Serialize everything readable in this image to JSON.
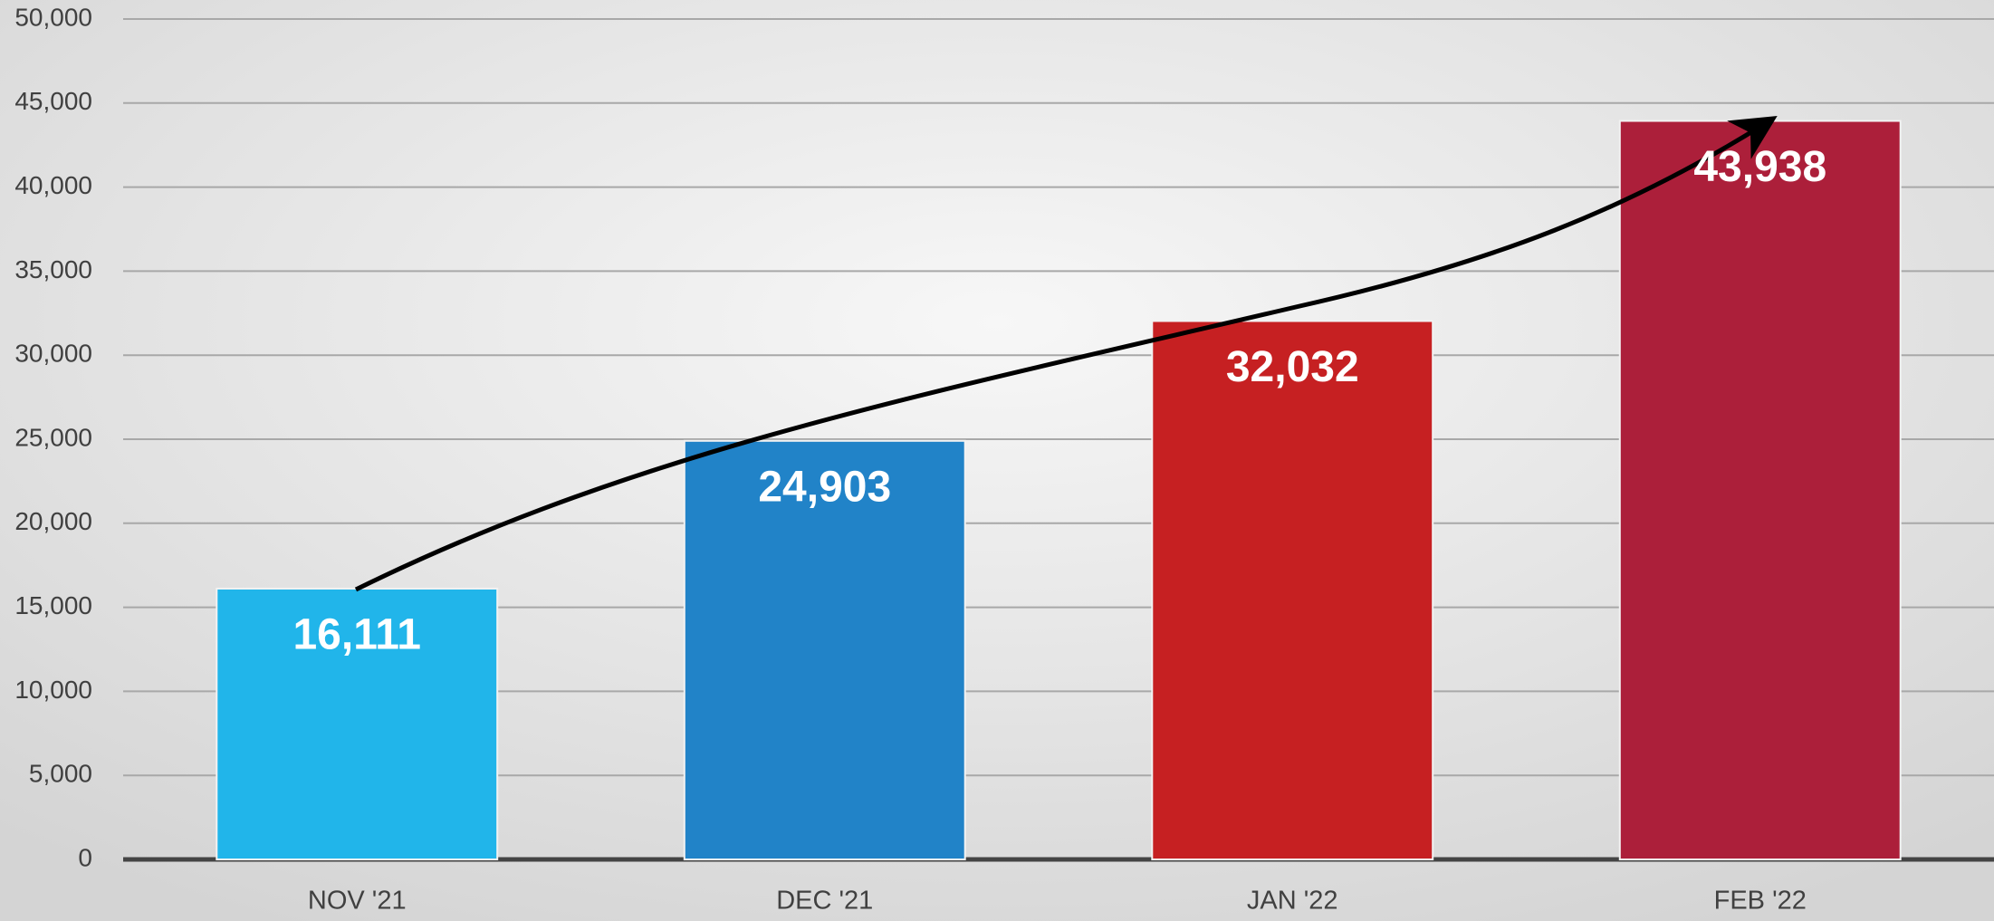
{
  "chart_data": {
    "type": "bar",
    "categories": [
      "NOV '21",
      "DEC '21",
      "JAN '22",
      "FEB '22"
    ],
    "values": [
      16111,
      24903,
      32032,
      43938
    ],
    "value_labels": [
      "16,111",
      "24,903",
      "32,032",
      "43,938"
    ],
    "colors": [
      "#21b5ea",
      "#2183c8",
      "#c62022",
      "#ac1f3a"
    ],
    "ylim": [
      0,
      50000
    ],
    "yticks": [
      0,
      {
        "value": 5000,
        "label": "5,000"
      },
      {
        "value": 10000,
        "label": "10,000"
      },
      {
        "value": 15000,
        "label": "15,000"
      },
      {
        "value": 20000,
        "label": "20,000"
      },
      {
        "value": 25000,
        "label": "25,000"
      },
      {
        "value": 30000,
        "label": "30,000"
      },
      {
        "value": 35000,
        "label": "35,000"
      },
      {
        "value": 40000,
        "label": "40,000"
      },
      {
        "value": 45000,
        "label": "45,000"
      },
      {
        "value": 50000,
        "label": "50,000"
      }
    ],
    "grid": true
  }
}
